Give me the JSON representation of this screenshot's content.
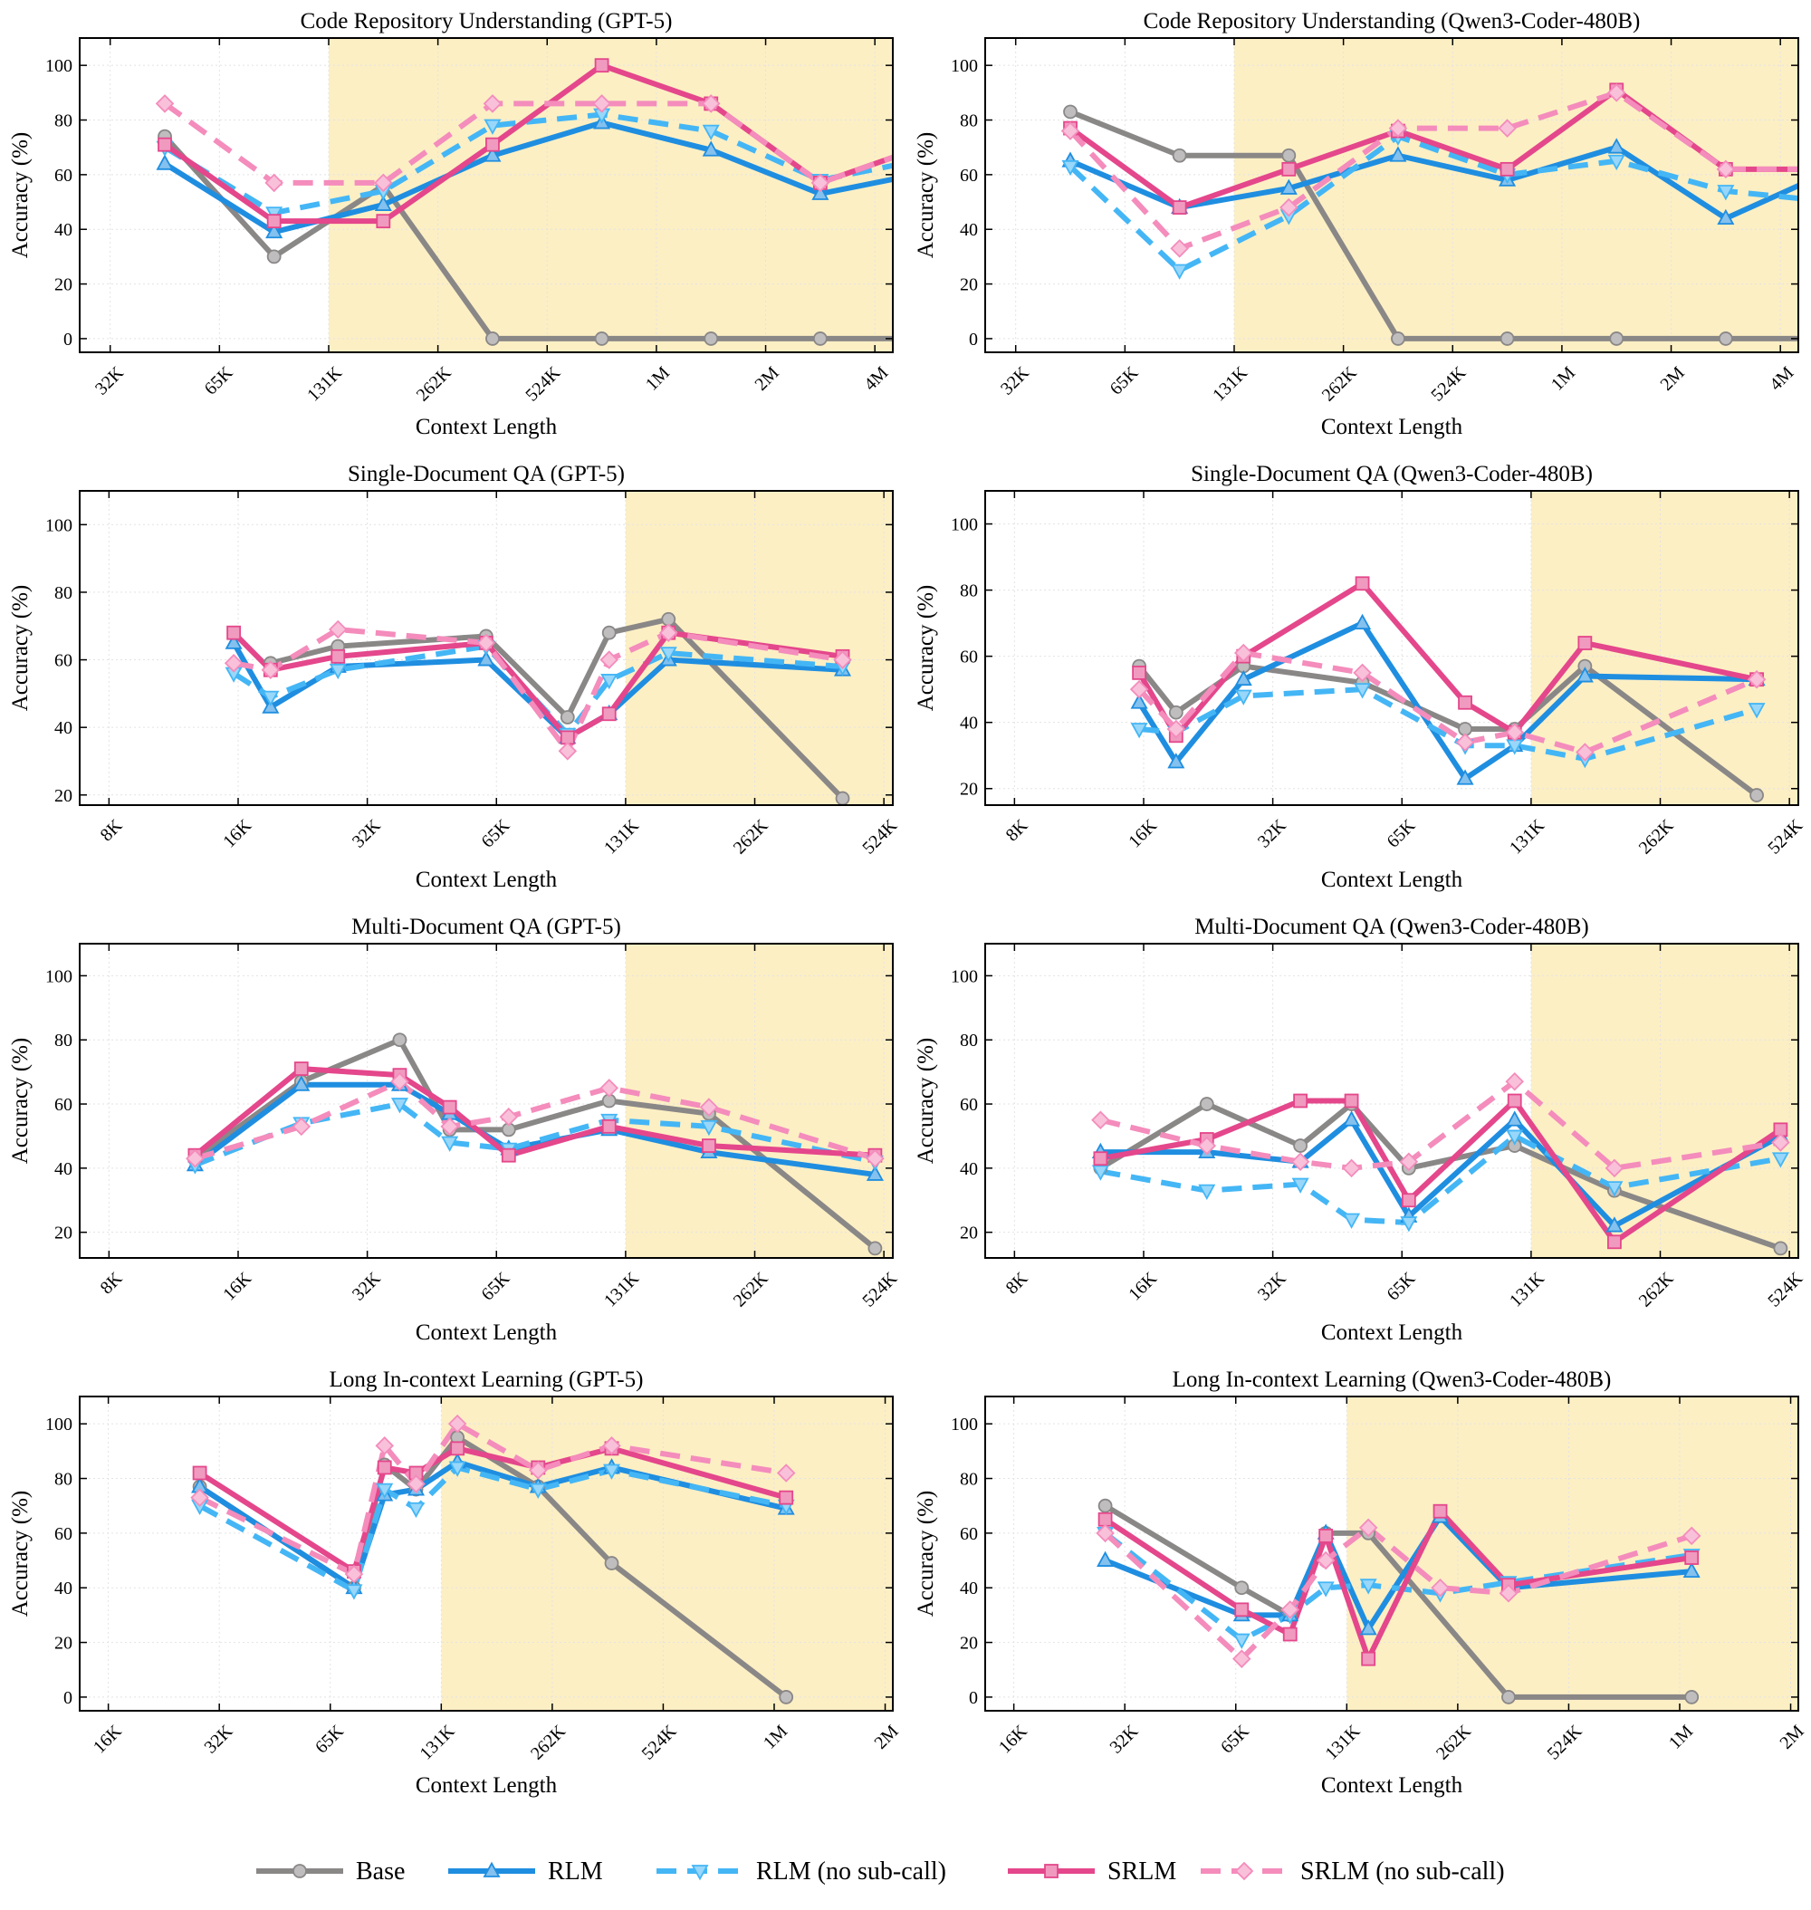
{
  "colors": {
    "Base": "#8a8787",
    "RLM": "#1f8ee0",
    "RLM (no sub-call)": "#44b6f5",
    "SRLM": "#e4478b",
    "SRLM (no sub-call)": "#f48cbc",
    "shade": "#fcefc4"
  },
  "legend": {
    "placement": "bottom-center",
    "items": [
      "Base",
      "RLM",
      "RLM (no sub-call)",
      "SRLM",
      "SRLM (no sub-call)"
    ]
  },
  "chart_data": [
    {
      "type": "line",
      "title": "Code Repository Understanding (GPT-5)",
      "xlabel": "Context Length",
      "ylabel": "Accuracy (%)",
      "x_scale": "log2",
      "xlim": [
        27000,
        4700000
      ],
      "ylim": [
        -5,
        110
      ],
      "yticks": [
        0,
        20,
        40,
        60,
        80,
        100
      ],
      "xticks": [
        {
          "v": 32768,
          "label": "32K"
        },
        {
          "v": 65536,
          "label": "65K"
        },
        {
          "v": 131072,
          "label": "131K"
        },
        {
          "v": 262144,
          "label": "262K"
        },
        {
          "v": 524288,
          "label": "524K"
        },
        {
          "v": 1048576,
          "label": "1M"
        },
        {
          "v": 2097152,
          "label": "2M"
        },
        {
          "v": 4194304,
          "label": "4M"
        }
      ],
      "shade_from": 131072,
      "x": [
        46341,
        92682,
        185363,
        370727,
        741455,
        1482910,
        2965820,
        5931641
      ],
      "series": [
        {
          "name": "Base",
          "values": [
            74,
            30,
            56,
            0,
            0,
            0,
            0,
            0
          ]
        },
        {
          "name": "RLM",
          "values": [
            64,
            39,
            49,
            67,
            79,
            69,
            53,
            61
          ]
        },
        {
          "name": "RLM (no sub-call)",
          "values": [
            70,
            46,
            54,
            78,
            82,
            76,
            58,
            66
          ]
        },
        {
          "name": "SRLM",
          "values": [
            71,
            43,
            43,
            71,
            100,
            86,
            57,
            71
          ]
        },
        {
          "name": "SRLM (no sub-call)",
          "values": [
            86,
            57,
            57,
            86,
            86,
            86,
            57,
            71
          ]
        }
      ]
    },
    {
      "type": "line",
      "title": "Code Repository Understanding (Qwen3-Coder-480B)",
      "xlabel": "Context Length",
      "ylabel": "Accuracy (%)",
      "x_scale": "log2",
      "xlim": [
        27000,
        4700000
      ],
      "ylim": [
        -5,
        110
      ],
      "yticks": [
        0,
        20,
        40,
        60,
        80,
        100
      ],
      "xticks": [
        {
          "v": 32768,
          "label": "32K"
        },
        {
          "v": 65536,
          "label": "65K"
        },
        {
          "v": 131072,
          "label": "131K"
        },
        {
          "v": 262144,
          "label": "262K"
        },
        {
          "v": 524288,
          "label": "524K"
        },
        {
          "v": 1048576,
          "label": "1M"
        },
        {
          "v": 2097152,
          "label": "2M"
        },
        {
          "v": 4194304,
          "label": "4M"
        }
      ],
      "shade_from": 131072,
      "x": [
        46341,
        92682,
        185363,
        370727,
        741455,
        1482910,
        2965820,
        5931641
      ],
      "series": [
        {
          "name": "Base",
          "values": [
            83,
            67,
            67,
            0,
            0,
            0,
            0,
            0
          ]
        },
        {
          "name": "RLM",
          "values": [
            65,
            48,
            55,
            67,
            58,
            70,
            44,
            62
          ]
        },
        {
          "name": "RLM (no sub-call)",
          "values": [
            63,
            25,
            45,
            74,
            60,
            65,
            54,
            50
          ]
        },
        {
          "name": "SRLM",
          "values": [
            77,
            48,
            62,
            76,
            62,
            91,
            62,
            62
          ]
        },
        {
          "name": "SRLM (no sub-call)",
          "values": [
            76,
            33,
            48,
            77,
            77,
            90,
            62,
            62
          ]
        }
      ]
    },
    {
      "type": "line",
      "title": "Single-Document QA (GPT-5)",
      "xlabel": "Context Length",
      "ylabel": "Accuracy (%)",
      "x_scale": "log2",
      "xlim": [
        7000,
        550000
      ],
      "ylim": [
        17,
        110
      ],
      "yticks": [
        20,
        40,
        60,
        80,
        100
      ],
      "xticks": [
        {
          "v": 8192,
          "label": "8K"
        },
        {
          "v": 16384,
          "label": "16K"
        },
        {
          "v": 32768,
          "label": "32K"
        },
        {
          "v": 65536,
          "label": "65K"
        },
        {
          "v": 131072,
          "label": "131K"
        },
        {
          "v": 262144,
          "label": "262K"
        },
        {
          "v": 524288,
          "label": "524K"
        }
      ],
      "shade_from": 131072,
      "x": [
        16000,
        19500,
        28000,
        62000,
        96000,
        120000,
        165000,
        420000
      ],
      "series": [
        {
          "name": "Base",
          "values": [
            null,
            59,
            64,
            67,
            43,
            68,
            72,
            19
          ]
        },
        {
          "name": "RLM",
          "values": [
            65,
            46,
            58,
            60,
            37,
            44,
            60,
            57
          ]
        },
        {
          "name": "RLM (no sub-call)",
          "values": [
            56,
            49,
            57,
            64,
            38,
            54,
            62,
            58
          ]
        },
        {
          "name": "SRLM",
          "values": [
            68,
            57,
            61,
            65,
            37,
            44,
            68,
            61
          ]
        },
        {
          "name": "SRLM (no sub-call)",
          "values": [
            59,
            57,
            69,
            65,
            33,
            60,
            68,
            60
          ]
        }
      ]
    },
    {
      "type": "line",
      "title": "Single-Document QA (Qwen3-Coder-480B)",
      "xlabel": "Context Length",
      "ylabel": "Accuracy (%)",
      "x_scale": "log2",
      "xlim": [
        7000,
        550000
      ],
      "ylim": [
        15,
        110
      ],
      "yticks": [
        20,
        40,
        60,
        80,
        100
      ],
      "xticks": [
        {
          "v": 8192,
          "label": "8K"
        },
        {
          "v": 16384,
          "label": "16K"
        },
        {
          "v": 32768,
          "label": "32K"
        },
        {
          "v": 65536,
          "label": "65K"
        },
        {
          "v": 131072,
          "label": "131K"
        },
        {
          "v": 262144,
          "label": "262K"
        },
        {
          "v": 524288,
          "label": "524K"
        }
      ],
      "shade_from": 131072,
      "x": [
        16000,
        19500,
        28000,
        53000,
        92000,
        120000,
        175000,
        440000
      ],
      "series": [
        {
          "name": "Base",
          "values": [
            57,
            43,
            57,
            52,
            38,
            38,
            57,
            18
          ]
        },
        {
          "name": "RLM",
          "values": [
            46,
            28,
            53,
            70,
            23,
            33,
            54,
            53
          ]
        },
        {
          "name": "RLM (no sub-call)",
          "values": [
            38,
            37,
            48,
            50,
            33,
            33,
            29,
            44
          ]
        },
        {
          "name": "SRLM",
          "values": [
            55,
            36,
            60,
            82,
            46,
            37,
            64,
            53
          ]
        },
        {
          "name": "SRLM (no sub-call)",
          "values": [
            50,
            38,
            61,
            55,
            34,
            37,
            31,
            53
          ]
        }
      ]
    },
    {
      "type": "line",
      "title": "Multi-Document QA (GPT-5)",
      "xlabel": "Context Length",
      "ylabel": "Accuracy (%)",
      "x_scale": "log2",
      "xlim": [
        7000,
        550000
      ],
      "ylim": [
        12,
        110
      ],
      "yticks": [
        20,
        40,
        60,
        80,
        100
      ],
      "xticks": [
        {
          "v": 8192,
          "label": "8K"
        },
        {
          "v": 16384,
          "label": "16K"
        },
        {
          "v": 32768,
          "label": "32K"
        },
        {
          "v": 65536,
          "label": "65K"
        },
        {
          "v": 131072,
          "label": "131K"
        },
        {
          "v": 262144,
          "label": "262K"
        },
        {
          "v": 524288,
          "label": "524K"
        }
      ],
      "shade_from": 131072,
      "x": [
        13000,
        23000,
        39000,
        51000,
        70000,
        120000,
        205000,
        500000
      ],
      "series": [
        {
          "name": "Base",
          "values": [
            43,
            67,
            80,
            52,
            52,
            61,
            57,
            15
          ]
        },
        {
          "name": "RLM",
          "values": [
            41,
            66,
            66,
            57,
            46,
            52,
            45,
            38
          ]
        },
        {
          "name": "RLM (no sub-call)",
          "values": [
            41,
            54,
            60,
            48,
            46,
            55,
            53,
            42
          ]
        },
        {
          "name": "SRLM",
          "values": [
            44,
            71,
            69,
            59,
            44,
            53,
            47,
            44
          ]
        },
        {
          "name": "SRLM (no sub-call)",
          "values": [
            43,
            53,
            67,
            53,
            56,
            65,
            59,
            43
          ]
        }
      ]
    },
    {
      "type": "line",
      "title": "Multi-Document QA (Qwen3-Coder-480B)",
      "xlabel": "Context Length",
      "ylabel": "Accuracy (%)",
      "x_scale": "log2",
      "xlim": [
        7000,
        550000
      ],
      "ylim": [
        12,
        110
      ],
      "yticks": [
        20,
        40,
        60,
        80,
        100
      ],
      "xticks": [
        {
          "v": 8192,
          "label": "8K"
        },
        {
          "v": 16384,
          "label": "16K"
        },
        {
          "v": 32768,
          "label": "32K"
        },
        {
          "v": 65536,
          "label": "65K"
        },
        {
          "v": 131072,
          "label": "131K"
        },
        {
          "v": 262144,
          "label": "262K"
        },
        {
          "v": 524288,
          "label": "524K"
        }
      ],
      "shade_from": 131072,
      "x": [
        13000,
        23000,
        38000,
        50000,
        68000,
        120000,
        205000,
        500000
      ],
      "series": [
        {
          "name": "Base",
          "values": [
            40,
            60,
            47,
            60,
            40,
            47,
            33,
            15
          ]
        },
        {
          "name": "RLM",
          "values": [
            45,
            45,
            42,
            55,
            25,
            55,
            22,
            50
          ]
        },
        {
          "name": "RLM (no sub-call)",
          "values": [
            39,
            33,
            35,
            24,
            23,
            50,
            34,
            43
          ]
        },
        {
          "name": "SRLM",
          "values": [
            43,
            49,
            61,
            61,
            30,
            61,
            17,
            52
          ]
        },
        {
          "name": "SRLM (no sub-call)",
          "values": [
            55,
            47,
            42,
            40,
            42,
            67,
            40,
            48
          ]
        }
      ]
    },
    {
      "type": "line",
      "title": "Long In-context Learning (GPT-5)",
      "xlabel": "Context Length",
      "ylabel": "Accuracy (%)",
      "x_scale": "log2",
      "xlim": [
        13700,
        2200000
      ],
      "ylim": [
        -5,
        110
      ],
      "yticks": [
        0,
        20,
        40,
        60,
        80,
        100
      ],
      "xticks": [
        {
          "v": 16384,
          "label": "16K"
        },
        {
          "v": 32768,
          "label": "32K"
        },
        {
          "v": 65536,
          "label": "65K"
        },
        {
          "v": 131072,
          "label": "131K"
        },
        {
          "v": 262144,
          "label": "262K"
        },
        {
          "v": 524288,
          "label": "524K"
        },
        {
          "v": 1048576,
          "label": "1M"
        },
        {
          "v": 2097152,
          "label": "2M"
        }
      ],
      "shade_from": 131072,
      "x": [
        29000,
        76000,
        92000,
        112000,
        145000,
        240000,
        380000,
        1130000
      ],
      "series": [
        {
          "name": "Base",
          "values": [
            77,
            40,
            85,
            76,
            95,
            77,
            49,
            0
          ]
        },
        {
          "name": "RLM",
          "values": [
            77,
            40,
            74,
            76,
            86,
            77,
            84,
            69
          ]
        },
        {
          "name": "RLM (no sub-call)",
          "values": [
            70,
            39,
            76,
            69,
            84,
            76,
            83,
            70
          ]
        },
        {
          "name": "SRLM",
          "values": [
            82,
            46,
            84,
            82,
            91,
            84,
            91,
            73
          ]
        },
        {
          "name": "SRLM (no sub-call)",
          "values": [
            73,
            45,
            92,
            78,
            100,
            83,
            92,
            82
          ]
        }
      ]
    },
    {
      "type": "line",
      "title": "Long In-context Learning (Qwen3-Coder-480B)",
      "xlabel": "Context Length",
      "ylabel": "Accuracy (%)",
      "x_scale": "log2",
      "xlim": [
        13700,
        2200000
      ],
      "ylim": [
        -5,
        110
      ],
      "yticks": [
        0,
        20,
        40,
        60,
        80,
        100
      ],
      "xticks": [
        {
          "v": 16384,
          "label": "16K"
        },
        {
          "v": 32768,
          "label": "32K"
        },
        {
          "v": 65536,
          "label": "65K"
        },
        {
          "v": 131072,
          "label": "131K"
        },
        {
          "v": 262144,
          "label": "262K"
        },
        {
          "v": 524288,
          "label": "524K"
        },
        {
          "v": 1048576,
          "label": "1M"
        },
        {
          "v": 2097152,
          "label": "2M"
        }
      ],
      "shade_from": 131072,
      "x": [
        29000,
        68000,
        92000,
        115000,
        150000,
        235000,
        360000,
        1130000
      ],
      "series": [
        {
          "name": "Base",
          "values": [
            70,
            40,
            30,
            60,
            60,
            null,
            0,
            0
          ]
        },
        {
          "name": "RLM",
          "values": [
            50,
            30,
            30,
            60,
            25,
            66,
            40,
            46
          ]
        },
        {
          "name": "RLM (no sub-call)",
          "values": [
            60,
            21,
            30,
            40,
            41,
            38,
            42,
            52
          ]
        },
        {
          "name": "SRLM",
          "values": [
            65,
            32,
            23,
            59,
            14,
            68,
            41,
            51
          ]
        },
        {
          "name": "SRLM (no sub-call)",
          "values": [
            60,
            14,
            32,
            50,
            62,
            40,
            38,
            59
          ]
        }
      ]
    }
  ]
}
